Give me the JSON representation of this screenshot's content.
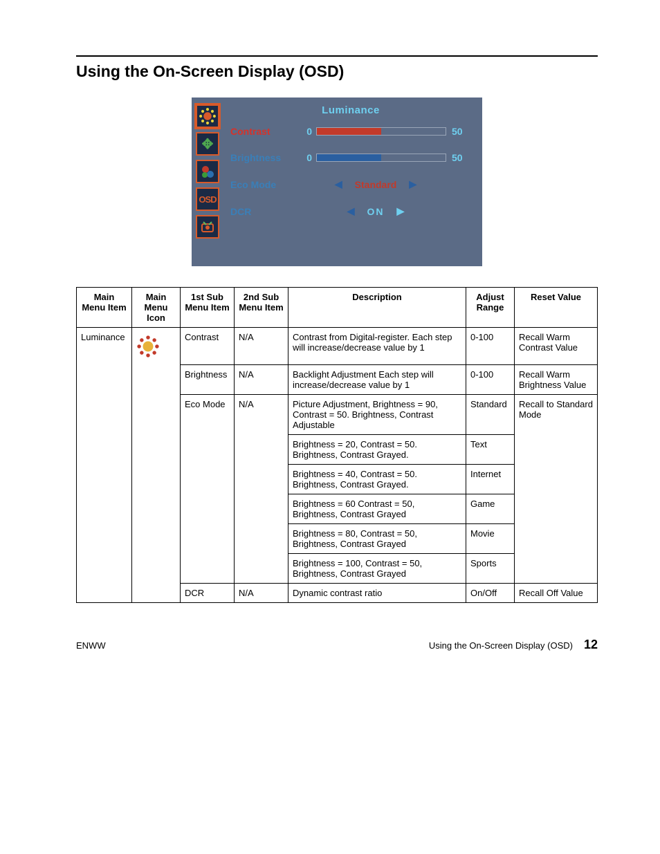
{
  "title": "Using the On-Screen Display (OSD)",
  "osd": {
    "heading": "Luminance",
    "rows": [
      {
        "label": "Contrast",
        "labelColor": "red",
        "type": "bar",
        "min": "0",
        "val": "50",
        "fillPct": 50,
        "barColor": "#c23a2a"
      },
      {
        "label": "Brightness",
        "labelColor": "blue",
        "type": "bar",
        "min": "0",
        "val": "50",
        "fillPct": 50,
        "barColor": "#2a5fa0"
      },
      {
        "label": "Eco Mode",
        "labelColor": "blue",
        "type": "mode",
        "text": "Standard",
        "textClass": "osd-mode-text",
        "leftArrowClass": "osd-arrow",
        "rightArrowClass": "osd-arrow"
      },
      {
        "label": "DCR",
        "labelColor": "blue",
        "type": "mode",
        "text": "ON",
        "textClass": "osd-mode-text on",
        "leftArrowClass": "osd-arrow",
        "rightArrowClass": "osd-arrow light"
      }
    ],
    "icons": [
      {
        "name": "luminance-icon",
        "kind": "sun",
        "active": true
      },
      {
        "name": "image-setup-icon",
        "kind": "move"
      },
      {
        "name": "color-temp-icon",
        "kind": "rgb"
      },
      {
        "name": "osd-setup-icon",
        "kind": "osd"
      },
      {
        "name": "extra-icon",
        "kind": "extra"
      }
    ]
  },
  "table": {
    "headers": [
      "Main\nMenu Item",
      "Main\nMenu Icon",
      "1st Sub\nMenu Item",
      "2nd Sub\nMenu Item",
      "Description",
      "Adjust\nRange",
      "Reset Value"
    ],
    "rows": [
      {
        "main": "Luminance",
        "icon": "sun",
        "sub1": "Contrast",
        "sub2": "N/A",
        "desc": "Contrast from Digital-register. Each step will increase/decrease value by 1",
        "range": "0-100",
        "reset": "Recall Warm Contrast Value",
        "mainSpanStart": true,
        "iconSpanStart": true,
        "resetSpanStart": true
      },
      {
        "sub1": "Brightness",
        "sub2": "N/A",
        "desc": "Backlight Adjustment Each step will increase/decrease value by 1",
        "range": "0-100",
        "reset": "Recall Warm Brightness Value",
        "resetSpanStart": true
      },
      {
        "sub1": "Eco Mode",
        "sub2": "N/A",
        "desc": "Picture Adjustment, Brightness = 90, Contrast = 50. Brightness, Contrast Adjustable",
        "range": "Standard",
        "reset": "Recall to Standard Mode",
        "sub1SpanStart": true,
        "sub2SpanStart": true,
        "resetSpanStart": true
      },
      {
        "desc": "Brightness = 20, Contrast = 50. Brightness, Contrast Grayed.",
        "range": "Text"
      },
      {
        "desc": "Brightness = 40, Contrast = 50. Brightness, Contrast Grayed.",
        "range": "Internet"
      },
      {
        "desc": "Brightness = 60 Contrast = 50, Brightness, Contrast Grayed",
        "range": "Game"
      },
      {
        "desc": "Brightness = 80, Contrast = 50, Brightness, Contrast Grayed",
        "range": "Movie"
      },
      {
        "desc": "Brightness = 100, Contrast = 50, Brightness, Contrast Grayed",
        "range": "Sports"
      },
      {
        "sub1": "DCR",
        "sub2": "N/A",
        "desc": "Dynamic contrast ratio",
        "range": "On/Off",
        "reset": "Recall Off Value",
        "sub1SpanStart": true,
        "sub2SpanStart": true,
        "resetSpanStart": true
      }
    ]
  },
  "footer": {
    "left": "ENWW",
    "rightLabel": "Using the On-Screen Display (OSD)",
    "pageNum": "12"
  }
}
